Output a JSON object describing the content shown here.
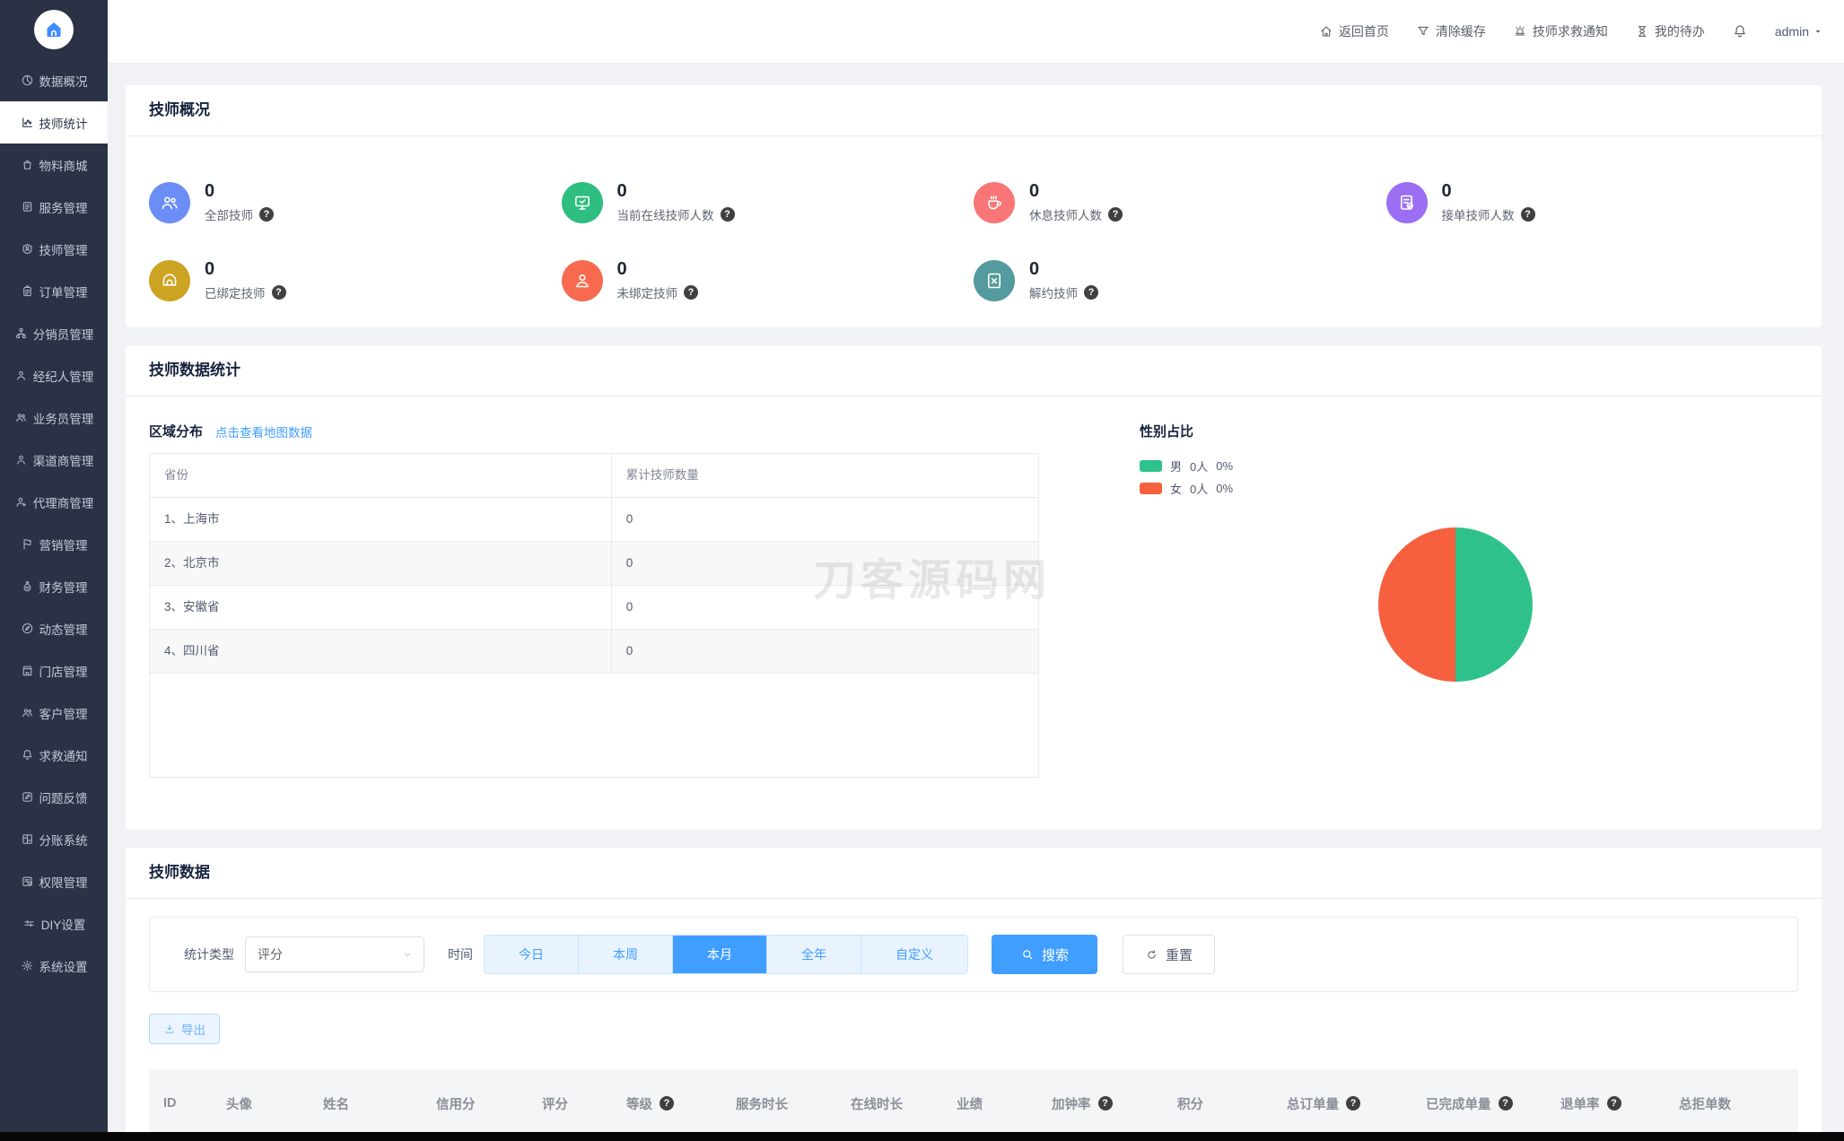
{
  "sidebar": {
    "items": [
      {
        "key": "data-overview",
        "label": "数据概况",
        "icon": "pie",
        "active": false
      },
      {
        "key": "technician-stats",
        "label": "技师统计",
        "icon": "chart",
        "active": true
      },
      {
        "key": "material-mall",
        "label": "物料商城",
        "icon": "bag",
        "active": false
      },
      {
        "key": "service-mgmt",
        "label": "服务管理",
        "icon": "doc",
        "active": false
      },
      {
        "key": "technician-mgmt",
        "label": "技师管理",
        "icon": "tech",
        "active": false
      },
      {
        "key": "order-mgmt",
        "label": "订单管理",
        "icon": "clip",
        "active": false
      },
      {
        "key": "distributor-mgmt",
        "label": "分销员管理",
        "icon": "tree",
        "active": false
      },
      {
        "key": "broker-mgmt",
        "label": "经纪人管理",
        "icon": "person",
        "active": false
      },
      {
        "key": "salesman-mgmt",
        "label": "业务员管理",
        "icon": "people",
        "active": false
      },
      {
        "key": "channel-mgmt",
        "label": "渠道商管理",
        "icon": "pbadge",
        "active": false
      },
      {
        "key": "agent-mgmt",
        "label": "代理商管理",
        "icon": "pplus",
        "active": false
      },
      {
        "key": "marketing-mgmt",
        "label": "营销管理",
        "icon": "flag",
        "active": false
      },
      {
        "key": "finance-mgmt",
        "label": "财务管理",
        "icon": "money",
        "active": false
      },
      {
        "key": "activity-mgmt",
        "label": "动态管理",
        "icon": "compass",
        "active": false
      },
      {
        "key": "store-mgmt",
        "label": "门店管理",
        "icon": "store",
        "active": false
      },
      {
        "key": "customer-mgmt",
        "label": "客户管理",
        "icon": "people",
        "active": false
      },
      {
        "key": "sos-notice",
        "label": "求救通知",
        "icon": "bell",
        "active": false
      },
      {
        "key": "feedback",
        "label": "问题反馈",
        "icon": "pencil",
        "active": false
      },
      {
        "key": "ledger-system",
        "label": "分账系统",
        "icon": "split",
        "active": false
      },
      {
        "key": "permission-mgmt",
        "label": "权限管理",
        "icon": "perm",
        "active": false
      },
      {
        "key": "diy-settings",
        "label": "DIY设置",
        "icon": "diy",
        "active": false
      },
      {
        "key": "system-settings",
        "label": "系统设置",
        "icon": "gear",
        "active": false
      }
    ]
  },
  "header": {
    "items": [
      {
        "key": "back-home",
        "label": "返回首页",
        "icon": "home"
      },
      {
        "key": "clear-cache",
        "label": "清除缓存",
        "icon": "funnel"
      },
      {
        "key": "technician-sos-notice",
        "label": "技师求救通知",
        "icon": "siren"
      },
      {
        "key": "my-todo",
        "label": "我的待办",
        "icon": "hourglass"
      }
    ],
    "user": "admin"
  },
  "overview": {
    "title": "技师概况",
    "stats": [
      {
        "key": "all-technicians",
        "value": "0",
        "label": "全部技师",
        "color": "#6b8ef6",
        "icon": "people"
      },
      {
        "key": "online-technicians",
        "value": "0",
        "label": "当前在线技师人数",
        "color": "#2dbe80",
        "icon": "stmonitor"
      },
      {
        "key": "resting-technicians",
        "value": "0",
        "label": "休息技师人数",
        "color": "#f97676",
        "icon": "stcoffee"
      },
      {
        "key": "order-taking-technicians",
        "value": "0",
        "label": "接单技师人数",
        "color": "#9b6ef3",
        "icon": "stdoccheck"
      },
      {
        "key": "bound-technicians",
        "value": "0",
        "label": "已绑定技师",
        "color": "#cda422",
        "icon": "sthood"
      },
      {
        "key": "unbound-technicians",
        "value": "0",
        "label": "未绑定技师",
        "color": "#f86a4f",
        "icon": "stperson"
      },
      {
        "key": "terminated-technicians",
        "value": "0",
        "label": "解约技师",
        "color": "#549a9e",
        "icon": "stdocx"
      }
    ]
  },
  "statistics": {
    "title": "技师数据统计",
    "region": {
      "title": "区域分布",
      "link": "点击查看地图数据",
      "columns": [
        "省份",
        "累计技师数量"
      ],
      "rows": [
        [
          "1、上海市",
          "0"
        ],
        [
          "2、北京市",
          "0"
        ],
        [
          "3、安徽省",
          "0"
        ],
        [
          "4、四川省",
          "0"
        ]
      ]
    },
    "gender": {
      "title": "性别占比",
      "legend": [
        {
          "label": "男",
          "count": "0人",
          "percent": "0%",
          "color": "#2ec28a"
        },
        {
          "label": "女",
          "count": "0人",
          "percent": "0%",
          "color": "#f7603e"
        }
      ],
      "chart_data": {
        "type": "pie",
        "labels": [
          "男",
          "女"
        ],
        "values": [
          0,
          0
        ],
        "display_split_percent": [
          50,
          50
        ],
        "colors": [
          "#2ec28a",
          "#f7603e"
        ],
        "legend_position": "top-left"
      }
    }
  },
  "watermark": "刀客源码网",
  "tech_data": {
    "title": "技师数据",
    "filter": {
      "type_label": "统计类型",
      "type_value": "评分",
      "time_label": "时间",
      "time_options": [
        {
          "key": "today",
          "label": "今日"
        },
        {
          "key": "this-week",
          "label": "本周"
        },
        {
          "key": "this-month",
          "label": "本月"
        },
        {
          "key": "this-year",
          "label": "全年"
        },
        {
          "key": "custom",
          "label": "自定义"
        }
      ],
      "time_active": "本月",
      "search_label": "搜索",
      "reset_label": "重置"
    },
    "export_label": "导出",
    "table": {
      "columns": [
        {
          "key": "id",
          "label": "ID",
          "help": false
        },
        {
          "key": "avatar",
          "label": "头像",
          "help": false
        },
        {
          "key": "name",
          "label": "姓名",
          "help": false
        },
        {
          "key": "credit-score",
          "label": "信用分",
          "help": false
        },
        {
          "key": "rating",
          "label": "评分",
          "help": false
        },
        {
          "key": "level",
          "label": "等级",
          "help": true
        },
        {
          "key": "service-duration",
          "label": "服务时长",
          "help": false
        },
        {
          "key": "online-duration",
          "label": "在线时长",
          "help": false
        },
        {
          "key": "performance",
          "label": "业绩",
          "help": false
        },
        {
          "key": "add-clock-rate",
          "label": "加钟率",
          "help": true
        },
        {
          "key": "points",
          "label": "积分",
          "help": false
        },
        {
          "key": "total-orders",
          "label": "总订单量",
          "help": true
        },
        {
          "key": "completed-orders",
          "label": "已完成单量",
          "help": true
        },
        {
          "key": "refund-rate",
          "label": "退单率",
          "help": true
        },
        {
          "key": "total-rejected",
          "label": "总拒单数",
          "help": false
        }
      ]
    }
  }
}
